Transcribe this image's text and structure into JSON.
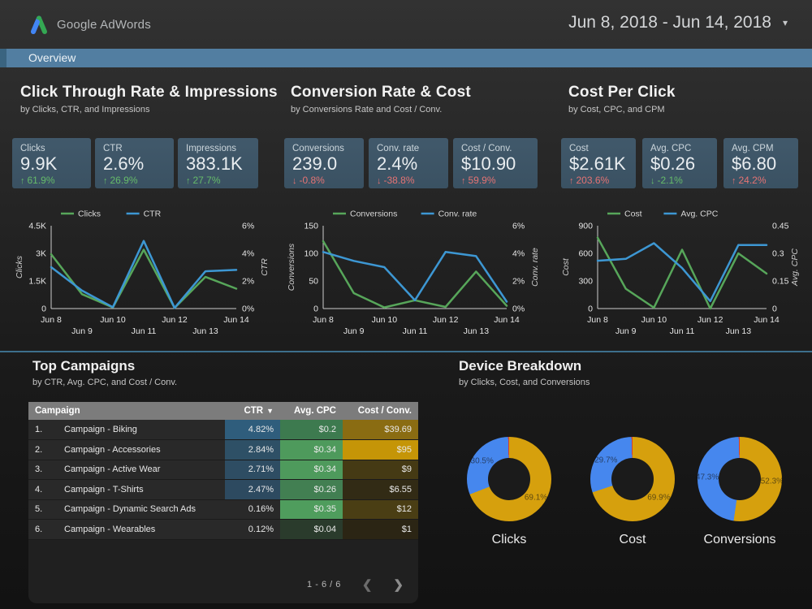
{
  "header": {
    "brand": "Google AdWords",
    "date_range": "Jun 8, 2018 - Jun 14, 2018",
    "caret": "▾"
  },
  "tabbar": {
    "label": "Overview"
  },
  "colors": {
    "tab_blue": "#527ea1",
    "line_green": "#57a65a",
    "line_blue": "#3d97d3",
    "pie_gold": "#d6a00d",
    "pie_blue": "#4687ee",
    "pie_red": "#d23f31",
    "positive": "#66bb6a",
    "negative": "#e57373"
  },
  "sections": [
    {
      "title": "Click Through Rate & Impressions",
      "subtitle": "by Clicks, CTR, and Impressions",
      "cards": [
        {
          "label": "Clicks",
          "value": "9.9K",
          "delta": "61.9%",
          "direction": "up",
          "sentiment": "pos"
        },
        {
          "label": "CTR",
          "value": "2.6%",
          "delta": "26.9%",
          "direction": "up",
          "sentiment": "pos"
        },
        {
          "label": "Impressions",
          "value": "383.1K",
          "delta": "27.7%",
          "direction": "up",
          "sentiment": "pos"
        }
      ]
    },
    {
      "title": "Conversion Rate & Cost",
      "subtitle": "by Conversions Rate and Cost / Conv.",
      "cards": [
        {
          "label": "Conversions",
          "value": "239.0",
          "delta": "-0.8%",
          "direction": "down",
          "sentiment": "neg"
        },
        {
          "label": "Conv. rate",
          "value": "2.4%",
          "delta": "-38.8%",
          "direction": "down",
          "sentiment": "neg"
        },
        {
          "label": "Cost / Conv.",
          "value": "$10.90",
          "delta": "59.9%",
          "direction": "up",
          "sentiment": "neg"
        }
      ]
    },
    {
      "title": "Cost Per Click",
      "subtitle": "by Cost, CPC, and CPM",
      "cards": [
        {
          "label": "Cost",
          "value": "$2.61K",
          "delta": "203.6%",
          "direction": "up",
          "sentiment": "neg"
        },
        {
          "label": "Avg. CPC",
          "value": "$0.26",
          "delta": "-2.1%",
          "direction": "down",
          "sentiment": "pos"
        },
        {
          "label": "Avg. CPM",
          "value": "$6.80",
          "delta": "24.2%",
          "direction": "up",
          "sentiment": "neg"
        }
      ]
    }
  ],
  "chart_data": [
    {
      "type": "line",
      "title": "Clicks and CTR by day",
      "x": [
        "Jun 8",
        "Jun 9",
        "Jun 10",
        "Jun 11",
        "Jun 12",
        "Jun 13",
        "Jun 14"
      ],
      "left_axis": {
        "label": "Clicks",
        "ticks": [
          "0",
          "1.5K",
          "3K",
          "4.5K"
        ],
        "max": 4500
      },
      "right_axis": {
        "label": "CTR",
        "ticks": [
          "0%",
          "2%",
          "4%",
          "6%"
        ],
        "max": 6
      },
      "series": [
        {
          "name": "Clicks",
          "axis": "left",
          "color": "#57a65a",
          "values": [
            2950,
            780,
            60,
            3200,
            30,
            1720,
            1080
          ]
        },
        {
          "name": "CTR",
          "axis": "right",
          "color": "#3d97d3",
          "values": [
            3.0,
            1.3,
            0.1,
            4.9,
            0.05,
            2.7,
            2.8
          ]
        }
      ]
    },
    {
      "type": "line",
      "title": "Conversions and Conv. rate by day",
      "x": [
        "Jun 8",
        "Jun 9",
        "Jun 10",
        "Jun 11",
        "Jun 12",
        "Jun 13",
        "Jun 14"
      ],
      "left_axis": {
        "label": "Conversions",
        "ticks": [
          "0",
          "50",
          "100",
          "150"
        ],
        "max": 150
      },
      "right_axis": {
        "label": "Conv. rate",
        "ticks": [
          "0%",
          "2%",
          "4%",
          "6%"
        ],
        "max": 6
      },
      "series": [
        {
          "name": "Conversions",
          "axis": "left",
          "color": "#57a65a",
          "values": [
            122,
            28,
            2,
            15,
            3,
            67,
            5
          ]
        },
        {
          "name": "Conv. rate",
          "axis": "right",
          "color": "#3d97d3",
          "values": [
            4.1,
            3.45,
            3.0,
            0.6,
            4.1,
            3.8,
            0.5
          ]
        }
      ]
    },
    {
      "type": "line",
      "title": "Cost and Avg. CPC by day",
      "x": [
        "Jun 8",
        "Jun 9",
        "Jun 10",
        "Jun 11",
        "Jun 12",
        "Jun 13",
        "Jun 14"
      ],
      "left_axis": {
        "label": "Cost",
        "ticks": [
          "0",
          "300",
          "600",
          "900"
        ],
        "max": 900
      },
      "right_axis": {
        "label": "Avg. CPC",
        "ticks": [
          "0",
          "0.15",
          "0.3",
          "0.45"
        ],
        "max": 0.45
      },
      "series": [
        {
          "name": "Cost",
          "axis": "left",
          "color": "#57a65a",
          "values": [
            770,
            215,
            10,
            640,
            0,
            600,
            380
          ]
        },
        {
          "name": "Avg. CPC",
          "axis": "right",
          "color": "#3d97d3",
          "values": [
            0.26,
            0.27,
            0.355,
            0.22,
            0.04,
            0.345,
            0.345
          ]
        }
      ]
    },
    {
      "type": "pie",
      "title": "Clicks",
      "slices": [
        {
          "color": "#d6a00d",
          "pct": 69.1,
          "label": "69.1%"
        },
        {
          "color": "#4687ee",
          "pct": 30.5,
          "label": "30.5%"
        },
        {
          "color": "#d23f31",
          "pct": 0.4,
          "label": ""
        }
      ]
    },
    {
      "type": "pie",
      "title": "Cost",
      "slices": [
        {
          "color": "#d6a00d",
          "pct": 69.9,
          "label": "69.9%"
        },
        {
          "color": "#4687ee",
          "pct": 29.7,
          "label": "29.7%"
        },
        {
          "color": "#d23f31",
          "pct": 0.4,
          "label": ""
        }
      ]
    },
    {
      "type": "pie",
      "title": "Conversions",
      "slices": [
        {
          "color": "#d6a00d",
          "pct": 52.3,
          "label": "52.3%"
        },
        {
          "color": "#4687ee",
          "pct": 47.3,
          "label": "47.3%"
        },
        {
          "color": "#d23f31",
          "pct": 0.4,
          "label": ""
        }
      ]
    }
  ],
  "table": {
    "title": "Top Campaigns",
    "subtitle": "by CTR, Avg. CPC, and Cost / Conv.",
    "columns": {
      "campaign": "Campaign",
      "ctr": "CTR",
      "cpc": "Avg. CPC",
      "cost": "Cost / Conv."
    },
    "sort_arrow": "▼",
    "rows": [
      {
        "rank": "1.",
        "name": "Campaign - Biking",
        "ctr": "4.82%",
        "ctr_bg": "#2f5d7c",
        "cpc": "$0.2",
        "cpc_bg": "#3d7a4f",
        "cost": "$39.69",
        "cost_bg": "#8a6c12"
      },
      {
        "rank": "2.",
        "name": "Campaign - Accessories",
        "ctr": "2.84%",
        "ctr_bg": "#2e5066",
        "cpc": "$0.34",
        "cpc_bg": "#4e9a5c",
        "cost": "$95",
        "cost_bg": "#c59507"
      },
      {
        "rank": "3.",
        "name": "Campaign - Active Wear",
        "ctr": "2.71%",
        "ctr_bg": "#2e4d63",
        "cpc": "$0.34",
        "cpc_bg": "#4e9a5c",
        "cost": "$9",
        "cost_bg": "#453a14"
      },
      {
        "rank": "4.",
        "name": "Campaign - T-Shirts",
        "ctr": "2.47%",
        "ctr_bg": "#2d4a60",
        "cpc": "$0.26",
        "cpc_bg": "#427f52",
        "cost": "$6.55",
        "cost_bg": "#322b15"
      },
      {
        "rank": "5.",
        "name": "Campaign - Dynamic Search Ads",
        "ctr": "0.16%",
        "ctr_bg": "#292929",
        "cpc": "$0.35",
        "cpc_bg": "#4f9d5d",
        "cost": "$12",
        "cost_bg": "#4a3e14"
      },
      {
        "rank": "6.",
        "name": "Campaign - Wearables",
        "ctr": "0.12%",
        "ctr_bg": "#292929",
        "cpc": "$0.04",
        "cpc_bg": "#2a3b2c",
        "cost": "$1",
        "cost_bg": "#2b2514"
      }
    ],
    "pagination": {
      "range": "1 - 6 / 6",
      "prev": "❮",
      "next": "❯"
    }
  },
  "devices": {
    "title": "Device Breakdown",
    "subtitle": "by Clicks, Cost, and Conversions",
    "captions": [
      "Clicks",
      "Cost",
      "Conversions"
    ]
  }
}
